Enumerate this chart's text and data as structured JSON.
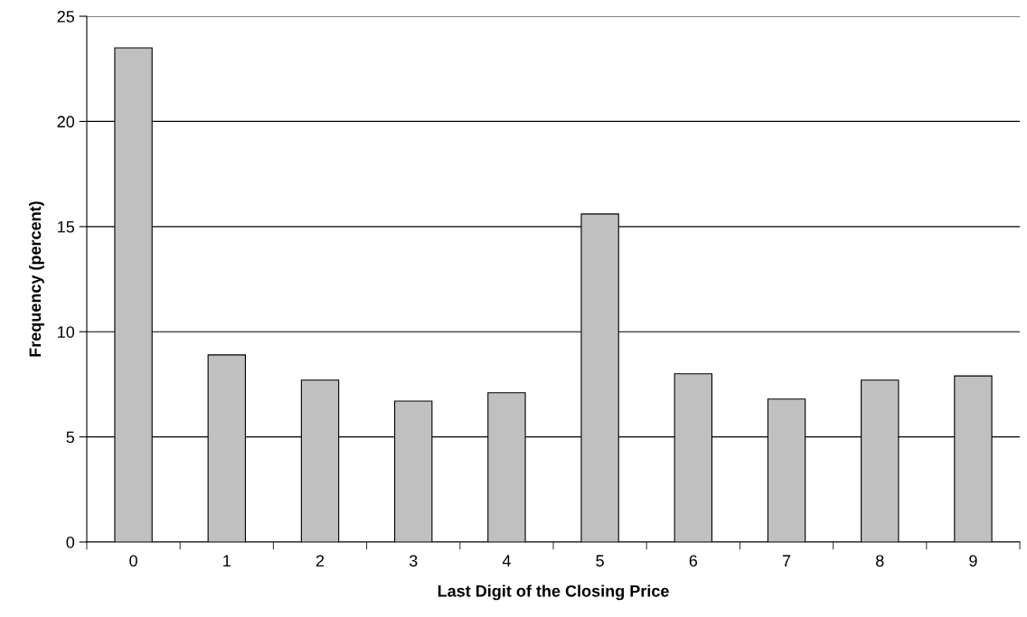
{
  "chart_data": {
    "type": "bar",
    "xlabel": "Last Digit of the Closing Price",
    "ylabel": "Frequency (percent)",
    "categories": [
      "0",
      "1",
      "2",
      "3",
      "4",
      "5",
      "6",
      "7",
      "8",
      "9"
    ],
    "values": [
      23.5,
      8.9,
      7.7,
      6.7,
      7.1,
      15.6,
      8.0,
      6.8,
      7.7,
      7.9
    ],
    "color": "#c0c0c0",
    "ylim": [
      0,
      25
    ],
    "yticks": [
      0,
      5,
      10,
      15,
      20,
      25
    ],
    "grid": "y"
  }
}
